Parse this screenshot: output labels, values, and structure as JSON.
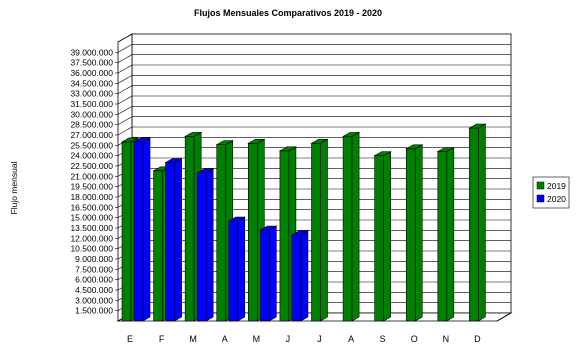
{
  "chart_data": {
    "type": "bar",
    "title": "Flujos Mensuales Comparativos 2019 - 2020",
    "ylabel": "Flujo mensual",
    "xlabel": "",
    "categories": [
      "E",
      "F",
      "M",
      "A",
      "M",
      "J",
      "J",
      "A",
      "S",
      "O",
      "N",
      "D"
    ],
    "yticks": [
      "1.500.000",
      "3.000.000",
      "4.500.000",
      "6.000.000",
      "7.500.000",
      "9.000.000",
      "10.500.000",
      "12.000.000",
      "13.500.000",
      "15.000.000",
      "16.500.000",
      "18.000.000",
      "19.500.000",
      "21.000.000",
      "22.500.000",
      "24.000.000",
      "25.500.000",
      "27.000.000",
      "28.500.000",
      "30.000.000",
      "31.500.000",
      "33.000.000",
      "34.500.000",
      "36.000.000",
      "37.500.000",
      "39.000.000"
    ],
    "ylim": [
      0,
      40500000
    ],
    "legend_position": "right",
    "grid": true,
    "series": [
      {
        "name": "2019",
        "color": "#008000",
        "values": [
          26000000,
          21800000,
          26800000,
          25600000,
          25800000,
          24700000,
          25800000,
          26800000,
          24000000,
          25000000,
          24600000,
          28000000
        ]
      },
      {
        "name": "2020",
        "color": "#0000ff",
        "values": [
          26000000,
          23000000,
          21500000,
          14500000,
          13200000,
          12500000,
          null,
          null,
          null,
          null,
          null,
          null
        ]
      }
    ]
  }
}
